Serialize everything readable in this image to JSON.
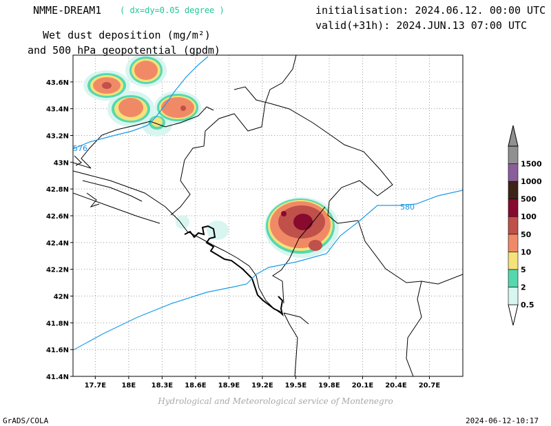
{
  "header": {
    "model": "NMME-DREAM1",
    "grid_note": "( dx=dy=0.05 degree )",
    "title_line1": "Wet dust deposition (mg/m²)",
    "title_line2": "and 500 hPa geopotential (gpdm)",
    "init": "initialisation: 2024.06.12. 00:00 UTC",
    "valid": "valid(+31h): 2024.JUN.13 07:00 UTC"
  },
  "map": {
    "lon_range": [
      17.5,
      21.0
    ],
    "lat_range": [
      41.4,
      43.8
    ],
    "lon_ticks": [
      "17.7E",
      "18E",
      "18.3E",
      "18.6E",
      "18.9E",
      "19.2E",
      "19.5E",
      "19.8E",
      "20.1E",
      "20.4E",
      "20.7E"
    ],
    "lat_ticks": [
      "41.4N",
      "41.6N",
      "41.8N",
      "42N",
      "42.2N",
      "42.4N",
      "42.6N",
      "42.8N",
      "43N",
      "43.2N",
      "43.4N",
      "43.6N"
    ],
    "contour_labels": [
      "576",
      "580"
    ],
    "contour_color": "#1a9ae8"
  },
  "legend": {
    "levels": [
      "0.5",
      "2",
      "5",
      "10",
      "50",
      "100",
      "500",
      "1000",
      "1500"
    ],
    "colors": [
      "#d8f5f0",
      "#55d8b0",
      "#f5e27a",
      "#f08a66",
      "#c0504a",
      "#880a2e",
      "#3e2418",
      "#8a5e9a",
      "#909090"
    ]
  },
  "footer": {
    "credit": "Hydrological and Meteorological service of Montenegro",
    "software": "GrADS/COLA",
    "timestamp": "2024-06-12-10:17"
  }
}
